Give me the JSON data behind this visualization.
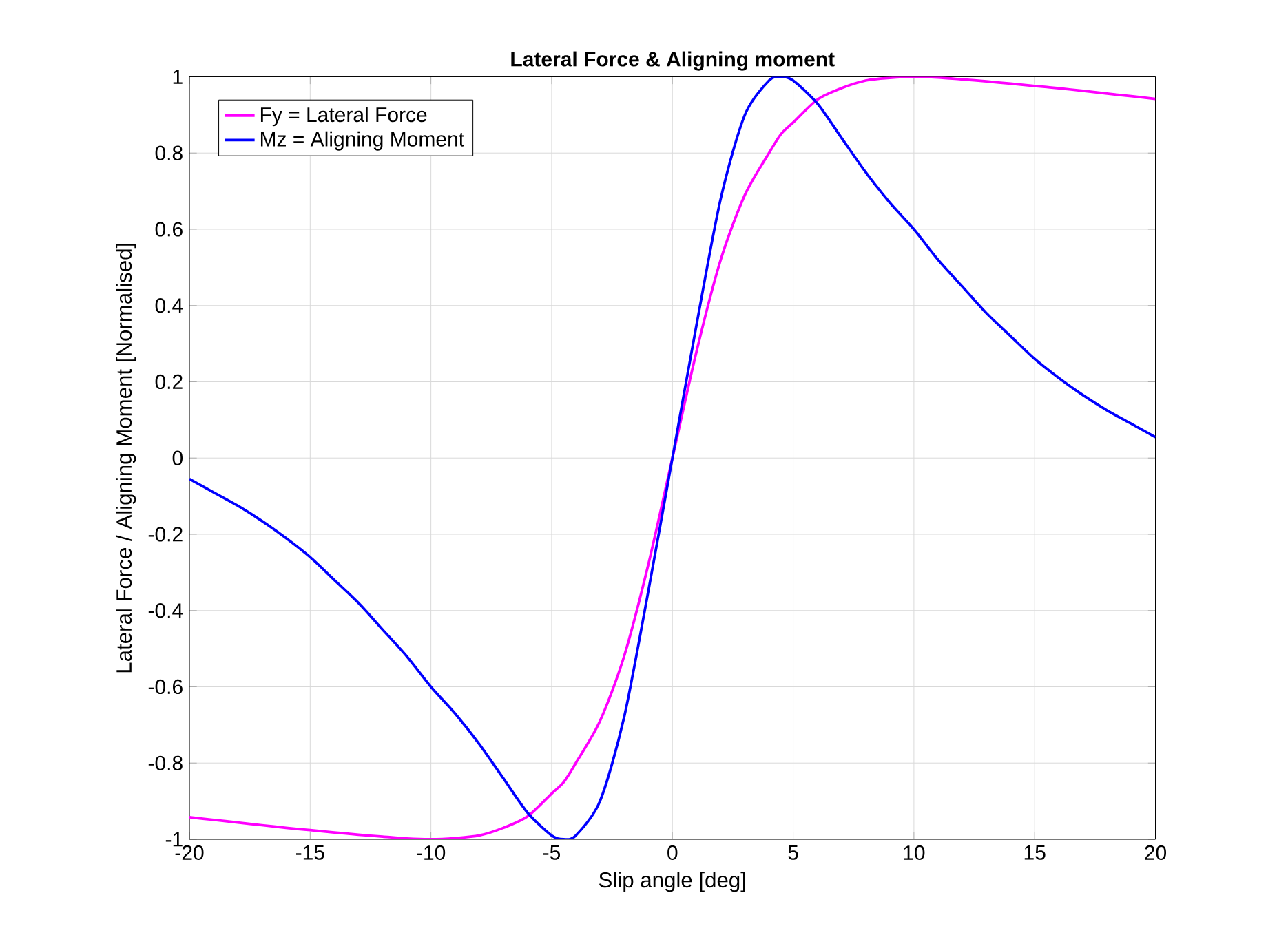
{
  "chart_data": {
    "type": "line",
    "title": "Lateral Force & Aligning moment",
    "xlabel": "Slip angle [deg]",
    "ylabel": "Lateral Force / Aligning Moment [Normalised]",
    "x": [
      -20,
      -19,
      -18,
      -17,
      -16,
      -15,
      -14,
      -13,
      -12,
      -11,
      -10,
      -9,
      -8,
      -7,
      -6,
      -5,
      -4.5,
      -4,
      -3,
      -2,
      -1,
      0,
      1,
      2,
      3,
      4,
      4.5,
      5,
      6,
      7,
      8,
      9,
      10,
      11,
      12,
      13,
      14,
      15,
      16,
      17,
      18,
      19,
      20
    ],
    "series": [
      {
        "name": "Fy = Lateral Force",
        "color": "#ff00ff",
        "values": [
          -0.942,
          -0.949,
          -0.956,
          -0.963,
          -0.97,
          -0.976,
          -0.982,
          -0.988,
          -0.993,
          -0.998,
          -1.0,
          -0.997,
          -0.99,
          -0.97,
          -0.94,
          -0.88,
          -0.85,
          -0.8,
          -0.69,
          -0.52,
          -0.28,
          0,
          0.28,
          0.52,
          0.69,
          0.8,
          0.85,
          0.88,
          0.94,
          0.97,
          0.99,
          0.997,
          1.0,
          0.998,
          0.993,
          0.988,
          0.982,
          0.976,
          0.97,
          0.963,
          0.956,
          0.949,
          0.942
        ]
      },
      {
        "name": "Mz = Aligning Moment",
        "color": "#0000ff",
        "values": [
          -0.055,
          -0.09,
          -0.125,
          -0.165,
          -0.21,
          -0.26,
          -0.32,
          -0.38,
          -0.45,
          -0.52,
          -0.6,
          -0.67,
          -0.75,
          -0.84,
          -0.93,
          -0.99,
          -1.0,
          -0.99,
          -0.9,
          -0.68,
          -0.35,
          0,
          0.35,
          0.68,
          0.9,
          0.99,
          1.0,
          0.99,
          0.93,
          0.84,
          0.75,
          0.67,
          0.6,
          0.52,
          0.45,
          0.38,
          0.32,
          0.26,
          0.21,
          0.165,
          0.125,
          0.09,
          0.055
        ]
      }
    ],
    "xlim": [
      -20,
      20
    ],
    "ylim": [
      -1,
      1
    ],
    "xticks": [
      -20,
      -15,
      -10,
      -5,
      0,
      5,
      10,
      15,
      20
    ],
    "yticks": [
      -1,
      -0.8,
      -0.6,
      -0.4,
      -0.2,
      0,
      0.2,
      0.4,
      0.6,
      0.8,
      1
    ],
    "grid": true,
    "legend": "top left",
    "line_style": "solid",
    "marker": "none"
  }
}
